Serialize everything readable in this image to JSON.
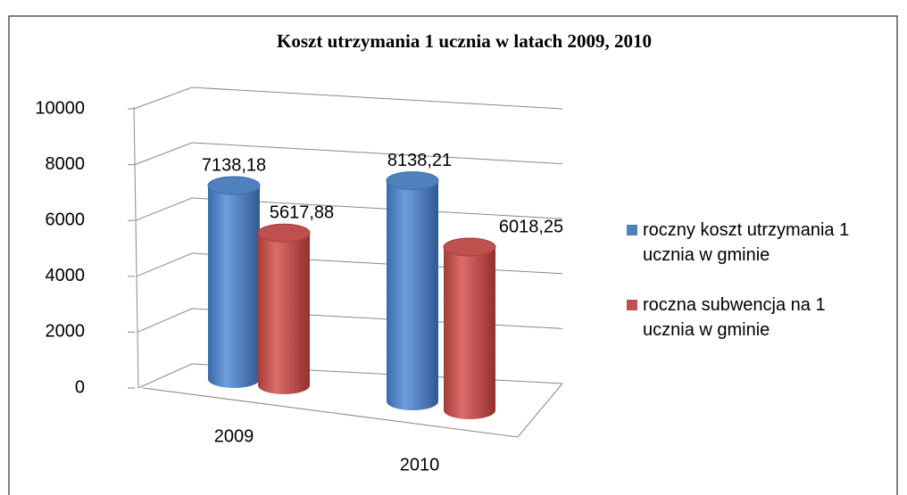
{
  "chart_data": {
    "type": "bar3d",
    "title": "Koszt utrzymania 1 ucznia w latach 2009, 2010",
    "categories": [
      "2009",
      "2010"
    ],
    "series": [
      {
        "name": "roczny koszt utrzymania 1 ucznia w gminie",
        "color": "#4f81bd",
        "values": [
          7138.18,
          8138.21
        ],
        "value_labels": [
          "7138,18",
          "8138,21"
        ]
      },
      {
        "name": "roczna subwencja na 1 ucznia w gminie",
        "color": "#c0504d",
        "values": [
          5617.88,
          6018.25
        ],
        "value_labels": [
          "5617,88",
          "6018,25"
        ]
      }
    ],
    "ylim": [
      0,
      10000
    ],
    "yticks": [
      0,
      2000,
      4000,
      6000,
      8000,
      10000
    ],
    "grid": true,
    "legend": "right"
  }
}
